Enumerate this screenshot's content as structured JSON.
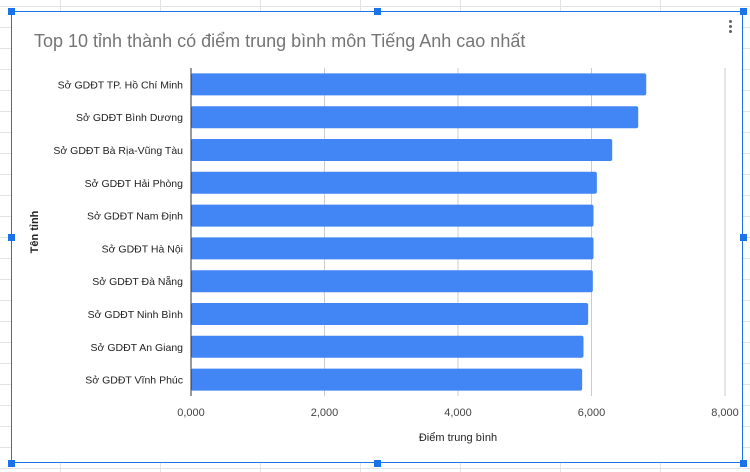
{
  "colors": {
    "bar": "#4285f4",
    "accent": "#1a73e8",
    "grid": "#cccccc",
    "axis": "#333333",
    "title": "#757575"
  },
  "icons": {
    "menu": "more-vert-icon"
  },
  "chart_data": {
    "type": "bar",
    "orientation": "horizontal",
    "title": "Top 10 tỉnh thành có điểm trung bình môn Tiếng Anh cao nhất",
    "xlabel": "Điểm trung bình",
    "ylabel": "Tên tỉnh",
    "categories": [
      "Sở GDĐT TP. Hồ Chí Minh",
      "Sở GDĐT Bình Dương",
      "Sở GDĐT Bà Rịa-Vũng Tàu",
      "Sở GDĐT Hải Phòng",
      "Sở GDĐT Nam Định",
      "Sở GDĐT Hà Nội",
      "Sở GDĐT Đà Nẵng",
      "Sở GDĐT Ninh Bình",
      "Sở GDĐT An Giang",
      "Sở GDĐT Vĩnh Phúc"
    ],
    "values": [
      6.82,
      6.7,
      6.31,
      6.08,
      6.03,
      6.03,
      6.02,
      5.95,
      5.88,
      5.86
    ],
    "xlim": [
      0,
      8
    ],
    "xticks": [
      "0,000",
      "2,000",
      "4,000",
      "6,000",
      "8,000"
    ],
    "grid": true,
    "legend": "none"
  }
}
